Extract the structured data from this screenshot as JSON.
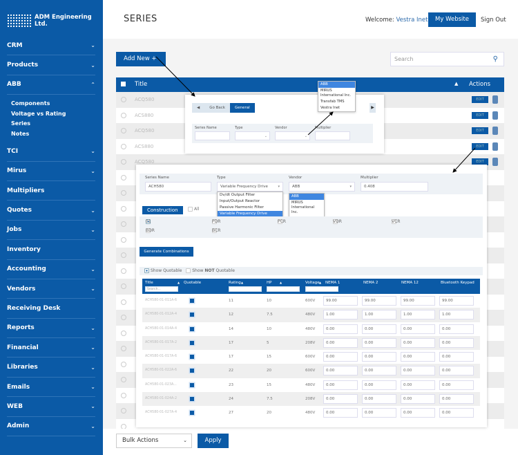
{
  "brand": {
    "name": "ADM Engineering Ltd."
  },
  "sidebar": {
    "items": [
      {
        "label": "CRM",
        "chev": true
      },
      {
        "label": "Products",
        "chev": true
      },
      {
        "label": "ABB",
        "chev": true,
        "open": true
      },
      {
        "label": "TCI",
        "chev": true
      },
      {
        "label": "Mirus",
        "chev": true
      },
      {
        "label": "Multipliers",
        "chev": false
      },
      {
        "label": "Quotes",
        "chev": true
      },
      {
        "label": "Jobs",
        "chev": true
      },
      {
        "label": "Inventory",
        "chev": false
      },
      {
        "label": "Accounting",
        "chev": true
      },
      {
        "label": "Vendors",
        "chev": true
      },
      {
        "label": "Receiving Desk",
        "chev": false
      },
      {
        "label": "Reports",
        "chev": true
      },
      {
        "label": "Financial",
        "chev": true
      },
      {
        "label": "Libraries",
        "chev": true
      },
      {
        "label": "Emails",
        "chev": true
      },
      {
        "label": "WEB",
        "chev": true
      },
      {
        "label": "Admin",
        "chev": true
      }
    ],
    "abb_sub": [
      "Components",
      "Voltage vs Rating",
      "Series",
      "Notes"
    ],
    "active_sub": "Series"
  },
  "header": {
    "title": "SERIES",
    "welcome": "Welcome:",
    "user": "Vestra Inet",
    "my_website": "My Website",
    "sign_out": "Sign Out"
  },
  "toolbar": {
    "add_new": "Add New",
    "search_placeholder": "Search"
  },
  "table": {
    "col_title": "Title",
    "col_actions": "Actions",
    "edit_label": "EDIT",
    "rows": [
      "ACQ580",
      "ACS880",
      "ACQ580",
      "ACS880",
      "ACQ580",
      "",
      "",
      "",
      "",
      "",
      "",
      "",
      "",
      "",
      "",
      "",
      "",
      "",
      "",
      "",
      "",
      ""
    ]
  },
  "footer": {
    "bulk_actions": "Bulk Actions",
    "apply": "Apply"
  },
  "modal_small": {
    "go_back": "Go Back",
    "general": "General",
    "labels": [
      "Series Name",
      "Type",
      "Vendor",
      "Multiplier"
    ],
    "vendor_options": [
      "ABB",
      "MIRUS International Inc.",
      "Transfab TMS",
      "Vestra Inet"
    ]
  },
  "modal_large": {
    "labels": {
      "series_name": "Series Name",
      "type": "Type",
      "vendor": "Vendor",
      "multiplier": "Multiplier"
    },
    "values": {
      "series_name": "ACH580",
      "type": "Variable Frequency Drive",
      "vendor": "ABB",
      "multiplier": "0.408"
    },
    "type_options": [
      "Dv/dt Output Filter",
      "Input/Output Reactor",
      "Passive Harmonic Filter",
      "Variable Frequency Drive"
    ],
    "vendor_options": [
      "ABB",
      "MIRUS International Inc.",
      "Transfab TMS",
      "Vestra Inet"
    ],
    "construction": "Construction",
    "all": "All",
    "constructions": [
      {
        "label": "01",
        "checked": true
      },
      {
        "label": "PDR"
      },
      {
        "label": "PCR"
      },
      {
        "label": "VDR"
      },
      {
        "label": "VCR"
      },
      {
        "label": "BDR"
      },
      {
        "label": "BCR"
      }
    ],
    "generate": "Generate Combinations",
    "show_quotable": "Show Quotable",
    "show_not_pre": "Show",
    "show_not_bold": "NOT",
    "show_not_post": "Quotable",
    "columns": [
      "Title",
      "Quotable",
      "Rating",
      "HP",
      "Voltage",
      "NEMA 1",
      "NEMA 2",
      "NEMA 12",
      "Bluetooth Keypad"
    ],
    "title_search_placeholder": "Search...",
    "rows": [
      [
        "ACH580-01-011A-6",
        "11",
        "10",
        "600V",
        "99.00",
        "99.00",
        "99.00",
        "99.00"
      ],
      [
        "ACH580-01-012A-4",
        "12",
        "7.5",
        "480V",
        "1.00",
        "1.00",
        "1.00",
        "1.00"
      ],
      [
        "ACH580-01-014A-4",
        "14",
        "10",
        "480V",
        "0.00",
        "0.00",
        "0.00",
        "0.00"
      ],
      [
        "ACH580-01-017A-2",
        "17",
        "5",
        "208V",
        "0.00",
        "0.00",
        "0.00",
        "0.00"
      ],
      [
        "ACH580-01-017A-6",
        "17",
        "15",
        "600V",
        "0.00",
        "0.00",
        "0.00",
        "0.00"
      ],
      [
        "ACH580-01-022A-6",
        "22",
        "20",
        "600V",
        "0.00",
        "0.00",
        "0.00",
        "0.00"
      ],
      [
        "ACH580-01-023A...",
        "23",
        "15",
        "480V",
        "0.00",
        "0.00",
        "0.00",
        "0.00"
      ],
      [
        "ACH580-01-024A-2",
        "24",
        "7.5",
        "208V",
        "0.00",
        "0.00",
        "0.00",
        "0.00"
      ],
      [
        "ACH580-01-027A-4",
        "27",
        "20",
        "480V",
        "0.00",
        "0.00",
        "0.00",
        "0.00"
      ]
    ]
  },
  "colors": {
    "primary": "#0b5aa6",
    "selected": "#3f86e0"
  }
}
